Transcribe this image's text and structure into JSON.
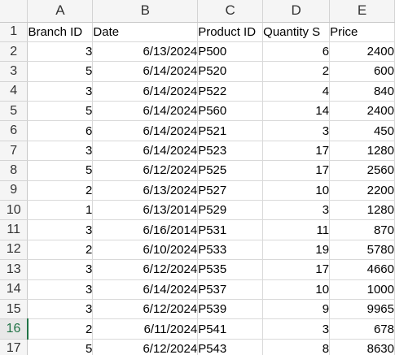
{
  "columns": [
    "A",
    "B",
    "C",
    "D",
    "E"
  ],
  "row_numbers": [
    1,
    2,
    3,
    4,
    5,
    6,
    7,
    8,
    9,
    10,
    11,
    12,
    13,
    14,
    15,
    16,
    17
  ],
  "selected_row": 16,
  "header_row": [
    "Branch ID",
    "Date",
    "Product ID",
    "Quantity S",
    "Price"
  ],
  "rows": [
    [
      "3",
      "6/13/2024",
      "P500",
      "6",
      "2400"
    ],
    [
      "5",
      "6/14/2024",
      "P520",
      "2",
      "600"
    ],
    [
      "3",
      "6/14/2024",
      "P522",
      "4",
      "840"
    ],
    [
      "5",
      "6/14/2024",
      "P560",
      "14",
      "2400"
    ],
    [
      "6",
      "6/14/2024",
      "P521",
      "3",
      "450"
    ],
    [
      "3",
      "6/14/2024",
      "P523",
      "17",
      "1280"
    ],
    [
      "5",
      "6/12/2024",
      "P525",
      "17",
      "2560"
    ],
    [
      "2",
      "6/13/2024",
      "P527",
      "10",
      "2200"
    ],
    [
      "1",
      "6/13/2014",
      "P529",
      "3",
      "1280"
    ],
    [
      "3",
      "6/16/2014",
      "P531",
      "11",
      "870"
    ],
    [
      "2",
      "6/10/2024",
      "P533",
      "19",
      "5780"
    ],
    [
      "3",
      "6/12/2024",
      "P535",
      "17",
      "4660"
    ],
    [
      "3",
      "6/14/2024",
      "P537",
      "10",
      "1000"
    ],
    [
      "3",
      "6/12/2024",
      "P539",
      "9",
      "9965"
    ],
    [
      "2",
      "6/11/2024",
      "P541",
      "3",
      "678"
    ],
    [
      "5",
      "6/12/2024",
      "P543",
      "8",
      "8630"
    ]
  ],
  "colors": {
    "selection_accent": "#217346",
    "header_bg": "#f5f5f5",
    "gridline": "#d9d9d9"
  }
}
